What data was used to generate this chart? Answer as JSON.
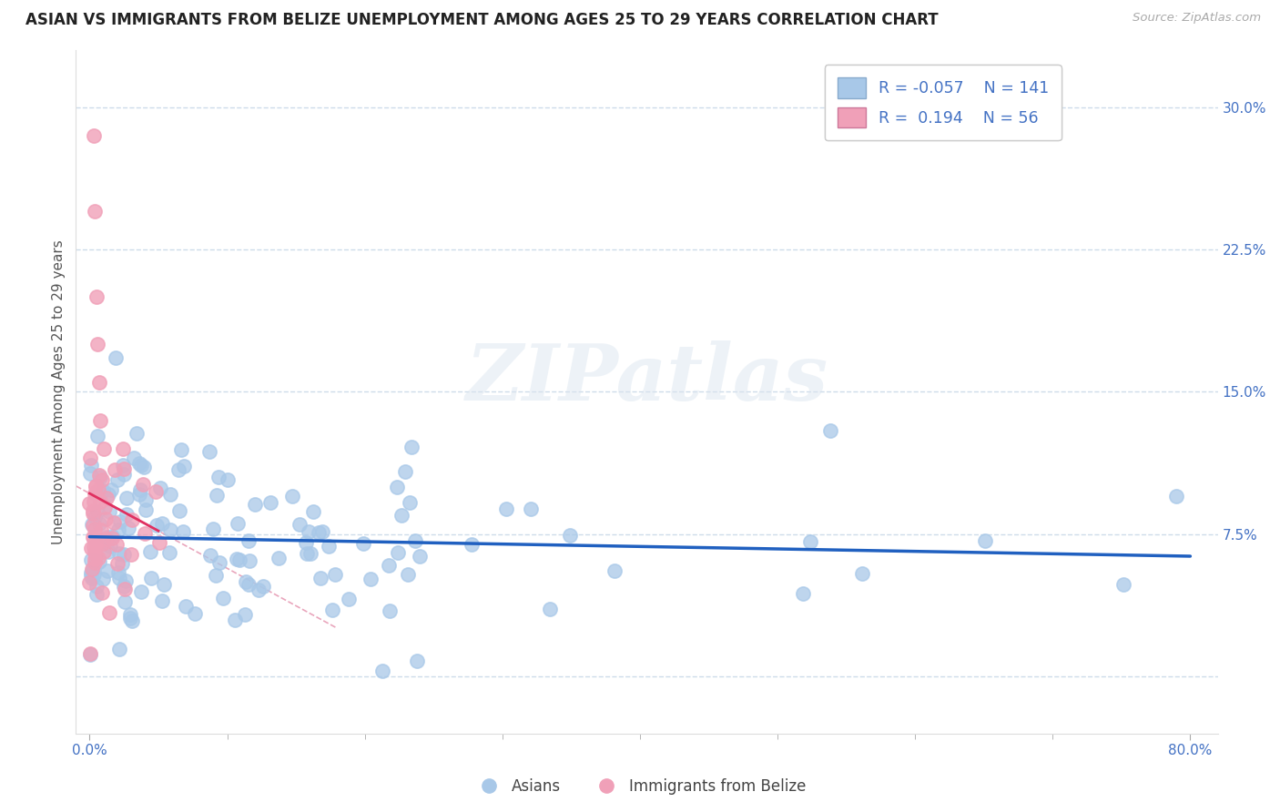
{
  "title": "ASIAN VS IMMIGRANTS FROM BELIZE UNEMPLOYMENT AMONG AGES 25 TO 29 YEARS CORRELATION CHART",
  "source_text": "Source: ZipAtlas.com",
  "ylabel": "Unemployment Among Ages 25 to 29 years",
  "xlim": [
    -0.01,
    0.82
  ],
  "ylim": [
    -0.03,
    0.33
  ],
  "ytick_vals": [
    0.0,
    0.075,
    0.15,
    0.225,
    0.3
  ],
  "ytick_labels": [
    "",
    "7.5%",
    "15.0%",
    "22.5%",
    "30.0%"
  ],
  "xtick_vals": [
    0.0,
    0.8
  ],
  "xtick_labels": [
    "0.0%",
    "80.0%"
  ],
  "asian_color": "#a8c8e8",
  "belize_color": "#f0a0b8",
  "asian_line_color": "#2060c0",
  "belize_line_color": "#e03060",
  "belize_dash_color": "#e080a0",
  "asian_R": -0.057,
  "asian_N": 141,
  "belize_R": 0.194,
  "belize_N": 56,
  "legend_label_asian": "Asians",
  "legend_label_belize": "Immigrants from Belize",
  "watermark": "ZIPatlas",
  "axis_color": "#4472c4",
  "grid_color": "#c8d8e8",
  "title_fontsize": 12,
  "tick_fontsize": 11
}
